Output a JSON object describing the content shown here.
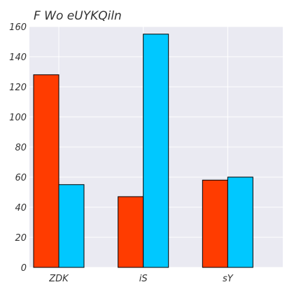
{
  "chart_data": {
    "type": "bar",
    "title": "F Wo eUYKQiln",
    "xlabel": "",
    "ylabel": "",
    "categories": [
      "ZDK",
      "iS",
      "sY"
    ],
    "series": [
      {
        "values": [
          128,
          47,
          58
        ],
        "color": "#ff3c00"
      },
      {
        "values": [
          55,
          155,
          60
        ],
        "color": "#00c8ff"
      }
    ],
    "ylim": [
      0,
      160
    ],
    "yticks": [
      0,
      20,
      40,
      60,
      80,
      100,
      120,
      140,
      160
    ],
    "grid": true,
    "plot_background": "#eaeaf2"
  }
}
